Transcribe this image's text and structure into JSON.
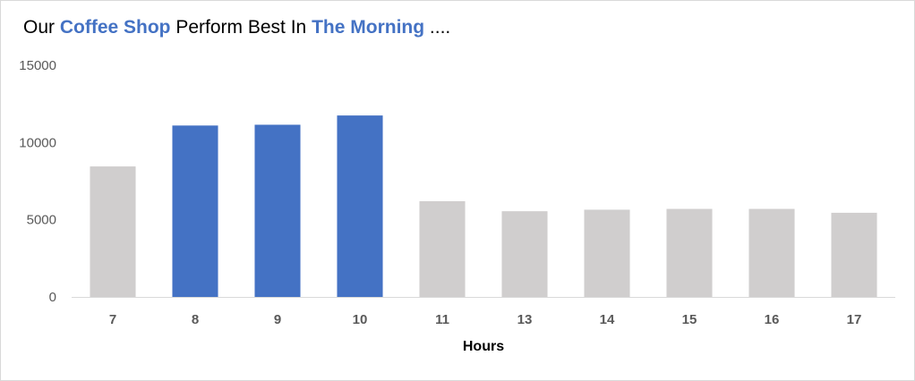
{
  "title": {
    "part1": "Our ",
    "highlight1": "Coffee Shop",
    "part2": " Perform Best In ",
    "highlight2": "The Morning",
    "part3": " ...."
  },
  "colors": {
    "highlight": "#4472c4",
    "default_bar": "#d0cece",
    "axis": "#d9d9d9"
  },
  "chart_data": {
    "type": "bar",
    "xlabel": "Hours",
    "ylabel": "",
    "ylim": [
      0,
      15000
    ],
    "yticks": [
      0,
      5000,
      10000,
      15000
    ],
    "grid": false,
    "categories": [
      "7",
      "8",
      "9",
      "10",
      "11",
      "13",
      "14",
      "15",
      "16",
      "17"
    ],
    "values": [
      8450,
      11100,
      11150,
      11750,
      6200,
      5550,
      5650,
      5700,
      5700,
      5450
    ],
    "highlighted": [
      false,
      true,
      true,
      true,
      false,
      false,
      false,
      false,
      false,
      false
    ]
  }
}
